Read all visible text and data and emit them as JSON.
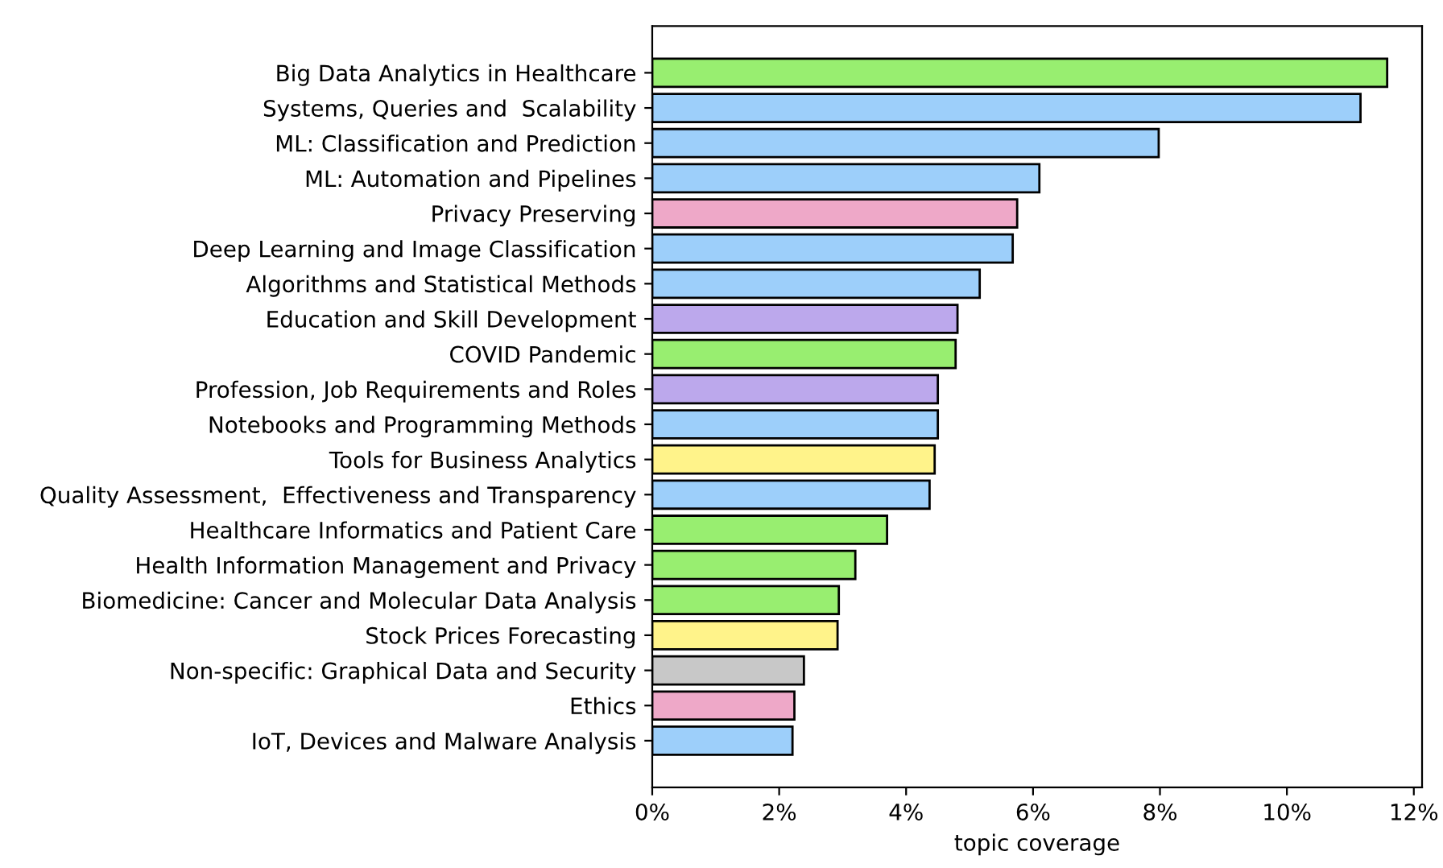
{
  "chart_data": {
    "type": "bar",
    "orientation": "horizontal",
    "xlabel": "topic coverage",
    "categories": [
      "Big Data Analytics in Healthcare",
      "Systems, Queries and  Scalability",
      "ML: Classification and Prediction",
      "ML: Automation and Pipelines",
      "Privacy Preserving",
      "Deep Learning and Image Classification",
      "Algorithms and Statistical Methods",
      "Education and Skill Development",
      "COVID Pandemic",
      "Profession, Job Requirements and Roles",
      "Notebooks and Programming Methods",
      "Tools for Business Analytics",
      "Quality Assessment,  Effectiveness and Transparency",
      "Healthcare Informatics and Patient Care",
      "Health Information Management and Privacy",
      "Biomedicine: Cancer and Molecular Data Analysis",
      "Stock Prices Forecasting",
      "Non-specific: Graphical Data and Security",
      "Ethics",
      "IoT, Devices and Malware Analysis"
    ],
    "values": [
      11.58,
      11.16,
      7.98,
      6.1,
      5.75,
      5.68,
      5.16,
      4.81,
      4.78,
      4.5,
      4.5,
      4.45,
      4.37,
      3.7,
      3.2,
      2.94,
      2.92,
      2.39,
      2.24,
      2.21
    ],
    "colors": [
      "#98ee70",
      "#9dcffa",
      "#9dcffa",
      "#9dcffa",
      "#eea8c8",
      "#9dcffa",
      "#9dcffa",
      "#bca8ec",
      "#98ee70",
      "#bca8ec",
      "#9dcffa",
      "#fff38a",
      "#9dcffa",
      "#98ee70",
      "#98ee70",
      "#98ee70",
      "#fff38a",
      "#c8c8c8",
      "#eea8c8",
      "#9dcffa"
    ],
    "xlim": [
      0,
      12.13
    ],
    "xticks": [
      {
        "value": 0,
        "label": "0%"
      },
      {
        "value": 2,
        "label": "2%"
      },
      {
        "value": 4,
        "label": "4%"
      },
      {
        "value": 6,
        "label": "6%"
      },
      {
        "value": 8,
        "label": "8%"
      },
      {
        "value": 10,
        "label": "10%"
      },
      {
        "value": 12,
        "label": "12%"
      }
    ],
    "grid": false,
    "legend": false
  }
}
